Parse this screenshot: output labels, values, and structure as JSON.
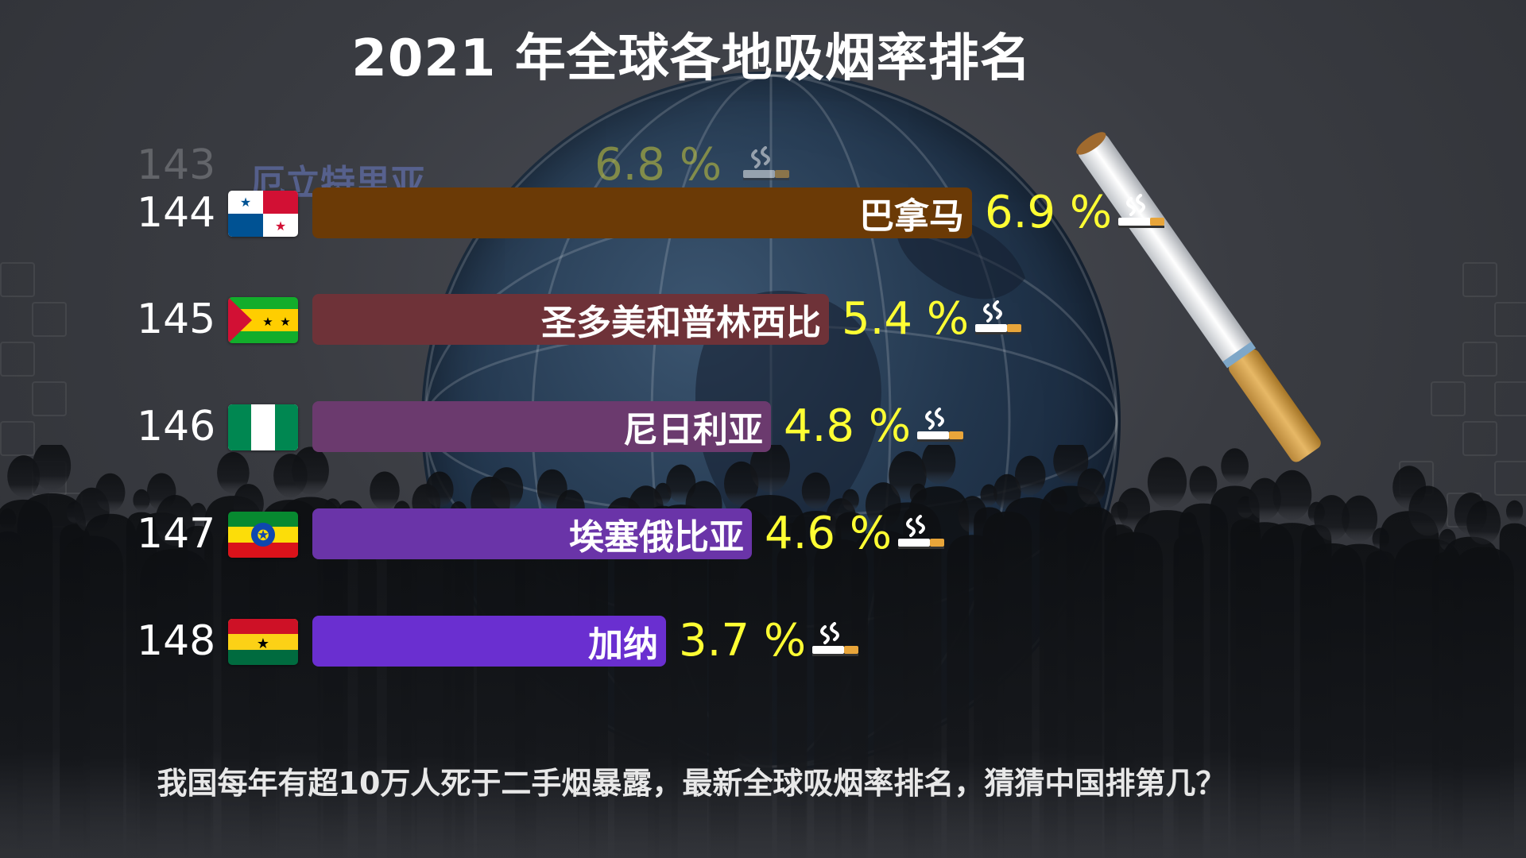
{
  "title": "2021 年全球各地吸烟率排名",
  "footer": "我国每年有超10万人死于二手烟暴露，最新全球吸烟率排名，猜猜中国排第几？",
  "unit_suffix": "%",
  "chart_data": {
    "type": "bar",
    "orientation": "horizontal",
    "title": "2021 年全球各地吸烟率排名",
    "value_unit": "%",
    "xlim": [
      0,
      6.9
    ],
    "ghost_entry": {
      "rank": "143",
      "country": "厄立特里亚",
      "value": 6.8
    },
    "entries": [
      {
        "rank": "144",
        "country": "巴拿马",
        "value": 6.9,
        "color": "#6b3a06",
        "flag": "panama"
      },
      {
        "rank": "145",
        "country": "圣多美和普林西比",
        "value": 5.4,
        "color": "#6e3238",
        "flag": "sao-tome"
      },
      {
        "rank": "146",
        "country": "尼日利亚",
        "value": 4.8,
        "color": "#6b3a6e",
        "flag": "nigeria"
      },
      {
        "rank": "147",
        "country": "埃塞俄比亚",
        "value": 4.6,
        "color": "#6a34a8",
        "flag": "ethiopia"
      },
      {
        "rank": "148",
        "country": "加纳",
        "value": 3.7,
        "color": "#6a2fd0",
        "flag": "ghana"
      }
    ]
  }
}
